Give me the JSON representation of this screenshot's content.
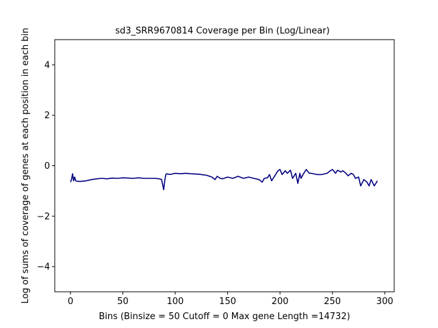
{
  "chart_data": {
    "type": "line",
    "title": "sd3_SRR9670814 Coverage per Bin (Log/Linear)",
    "xlabel": "Bins  (Binsize = 50 Cutoff = 0 Max gene Length =14732)",
    "ylabel": "Log of sums of coverage of genes at each position in each bin",
    "xlim": [
      -15,
      309
    ],
    "ylim": [
      -5,
      5
    ],
    "xticks": [
      0,
      50,
      100,
      150,
      200,
      250,
      300
    ],
    "yticks": [
      -4,
      -2,
      0,
      2,
      4
    ],
    "grid": false,
    "legend": "none",
    "series": [
      {
        "color": "#000080",
        "x": [
          0,
          1,
          2,
          3,
          4,
          5,
          7,
          10,
          15,
          20,
          25,
          30,
          35,
          40,
          45,
          50,
          55,
          60,
          65,
          70,
          75,
          80,
          85,
          87,
          89,
          90,
          91,
          92,
          95,
          100,
          105,
          110,
          115,
          120,
          125,
          130,
          135,
          138,
          140,
          143,
          145,
          150,
          155,
          160,
          165,
          170,
          175,
          180,
          183,
          185,
          188,
          190,
          192,
          195,
          198,
          200,
          202,
          205,
          207,
          210,
          212,
          215,
          217,
          219,
          220,
          222,
          225,
          228,
          230,
          235,
          240,
          245,
          248,
          250,
          253,
          255,
          258,
          260,
          263,
          265,
          268,
          270,
          272,
          275,
          277,
          280,
          283,
          285,
          287,
          290,
          293
        ],
        "y": [
          -0.65,
          -0.55,
          -0.32,
          -0.6,
          -0.45,
          -0.6,
          -0.62,
          -0.62,
          -0.6,
          -0.55,
          -0.52,
          -0.5,
          -0.52,
          -0.49,
          -0.5,
          -0.48,
          -0.49,
          -0.5,
          -0.48,
          -0.5,
          -0.5,
          -0.5,
          -0.52,
          -0.55,
          -0.95,
          -0.6,
          -0.35,
          -0.32,
          -0.35,
          -0.3,
          -0.32,
          -0.3,
          -0.32,
          -0.33,
          -0.35,
          -0.38,
          -0.45,
          -0.55,
          -0.42,
          -0.5,
          -0.52,
          -0.45,
          -0.5,
          -0.42,
          -0.5,
          -0.45,
          -0.5,
          -0.55,
          -0.65,
          -0.5,
          -0.48,
          -0.35,
          -0.6,
          -0.4,
          -0.2,
          -0.15,
          -0.35,
          -0.2,
          -0.3,
          -0.18,
          -0.5,
          -0.3,
          -0.7,
          -0.3,
          -0.5,
          -0.35,
          -0.15,
          -0.3,
          -0.3,
          -0.35,
          -0.35,
          -0.3,
          -0.2,
          -0.15,
          -0.3,
          -0.18,
          -0.25,
          -0.2,
          -0.3,
          -0.4,
          -0.3,
          -0.35,
          -0.5,
          -0.45,
          -0.8,
          -0.55,
          -0.65,
          -0.8,
          -0.55,
          -0.8,
          -0.6
        ]
      }
    ]
  }
}
